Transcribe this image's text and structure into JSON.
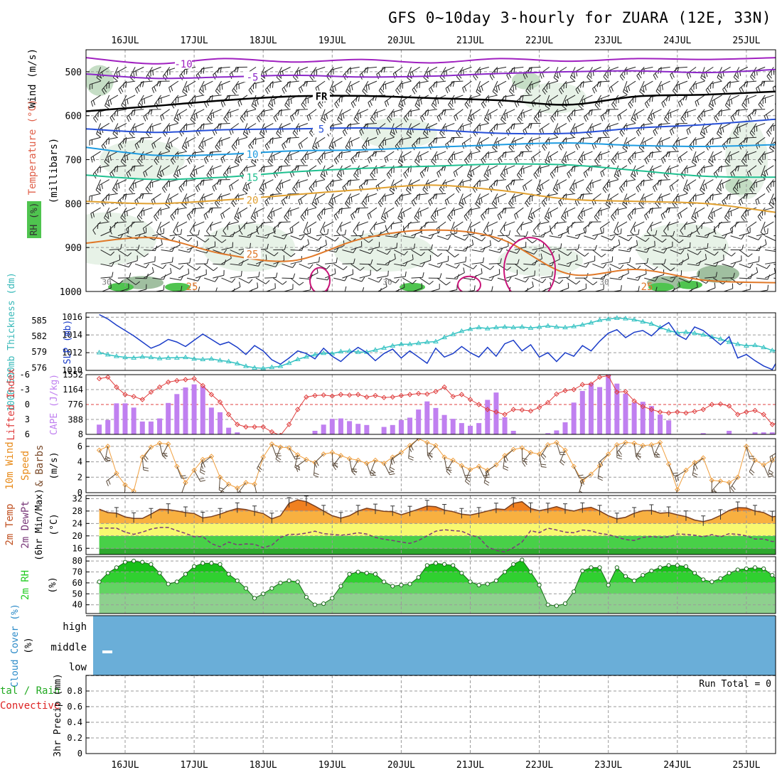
{
  "title": "GFS 0~10day 3-hourly for ZUARA (12E, 33N)",
  "colors": {
    "wind_barb": "#222222",
    "rh_light": "#e3f0e3",
    "rh_mid": "#bcd8bc",
    "rh_dark": "#8fb48f",
    "rh_green": "#4fc44f",
    "temp_m10": "#a020c0",
    "temp_m5": "#8c28c8",
    "temp_fr": "#000000",
    "temp_5": "#2850d8",
    "temp_10": "#1e9be0",
    "temp_15": "#20c090",
    "temp_20": "#e0a030",
    "temp_25": "#e07828",
    "temp_30": "#c81478",
    "slp": "#1a3cc8",
    "thickness": "#36c3c3",
    "lifted": "#e04040",
    "cape": "#c080f0",
    "wind10": "#f0a040",
    "temp2m": "#e07020",
    "dew2m": "#7a3a7a",
    "rh2m": "#22cc22",
    "cloud": "#6aaed8",
    "precip_total": "#22aa22",
    "precip_conv": "#dd2222"
  },
  "chart_data": {
    "date_labels": [
      "16JUL",
      "17JUL",
      "18JUL",
      "19JUL",
      "20JUL",
      "21JUL",
      "22JUL",
      "23JUL",
      "24JUL",
      "25JUL"
    ],
    "steps_per_day": 8,
    "n_steps": 80,
    "panels": [
      {
        "id": "upper_air",
        "type": "contour",
        "ylabel": "(millibars)",
        "side_labels": [
          "Wind (m/s)",
          "Temperature (°C)",
          "RH (%)"
        ],
        "yticks": [
          500,
          600,
          700,
          800,
          900,
          1000
        ],
        "ylim": [
          450,
          1000
        ],
        "contour_labels": [
          "-10",
          "-5",
          "FR",
          "5",
          "10",
          "15",
          "20",
          "25",
          "30"
        ],
        "isotherms": [
          {
            "label": "-10",
            "color_key": "temp_m10",
            "levels": [
              468,
              482,
              470,
              478,
              472,
              480,
              470,
              476,
              470,
              472,
              468
            ]
          },
          {
            "label": "-5",
            "color_key": "temp_m5",
            "levels": [
              505,
              515,
              512,
              508,
              512,
              510,
              504,
              500,
              498,
              502,
              495
            ]
          },
          {
            "label": "FR",
            "color_key": "temp_fr",
            "levels": [
              590,
              578,
              565,
              556,
              555,
              560,
              565,
              575,
              556,
              552,
              545
            ]
          },
          {
            "label": "5",
            "color_key": "temp_5",
            "levels": [
              630,
              638,
              632,
              630,
              628,
              632,
              640,
              640,
              628,
              620,
              608
            ]
          },
          {
            "label": "10",
            "color_key": "temp_10",
            "levels": [
              672,
              690,
              688,
              680,
              678,
              672,
              666,
              662,
              668,
              670,
              666
            ]
          },
          {
            "label": "15",
            "color_key": "temp_15",
            "levels": [
              735,
              745,
              740,
              728,
              720,
              715,
              710,
              712,
              725,
              738,
              740
            ]
          },
          {
            "label": "20",
            "color_key": "temp_20",
            "levels": [
              795,
              800,
              792,
              780,
              768,
              758,
              770,
              790,
              795,
              800,
              820
            ]
          },
          {
            "label": "25",
            "color_key": "temp_25",
            "levels": [
              890,
              878,
              915,
              930,
              880,
              860,
              880,
              960,
              950,
              975,
              980
            ]
          }
        ]
      },
      {
        "id": "slp_thickness",
        "type": "line",
        "left_label": "1000-500mb Thickness (dm)",
        "right_label": "SLP (mb)",
        "slp_yticks": [
          1010,
          1012,
          1014,
          1016
        ],
        "slp_ylim": [
          1010,
          1016.5
        ],
        "thickness_yticks": [
          576,
          579,
          582,
          585
        ],
        "thickness_ylim": [
          575.5,
          586.5
        ],
        "series": [
          {
            "name": "SLP",
            "color_key": "slp",
            "values": [
              1016.3,
              1015.8,
              1015.1,
              1014.5,
              1013.9,
              1013.2,
              1012.5,
              1012.9,
              1013.5,
              1013.2,
              1012.7,
              1013.4,
              1014.1,
              1013.5,
              1012.9,
              1013.2,
              1012.6,
              1011.8,
              1012.8,
              1012.2,
              1011.2,
              1010.7,
              1011.4,
              1012.2,
              1011.9,
              1011.3,
              1012.5,
              1011.6,
              1011.0,
              1011.9,
              1012.6,
              1012.0,
              1011.1,
              1011.9,
              1012.4,
              1011.4,
              1012.2,
              1011.5,
              1010.8,
              1012.5,
              1011.5,
              1011.9,
              1012.7,
              1012.0,
              1011.5,
              1012.6,
              1011.6,
              1013.0,
              1013.4,
              1012.2,
              1012.9,
              1011.5,
              1012.0,
              1011.0,
              1012.0,
              1011.6,
              1012.8,
              1012.2,
              1013.3,
              1014.2,
              1014.6,
              1013.7,
              1014.3,
              1014.5,
              1013.9,
              1014.8,
              1015.4,
              1014.0,
              1013.5,
              1014.9,
              1014.5,
              1013.7,
              1012.9,
              1013.8,
              1011.4,
              1011.8,
              1011.1,
              1010.5,
              1010.1,
              1011.8
            ]
          },
          {
            "name": "Thickness",
            "color_key": "thickness",
            "values": [
              578.9,
              578.5,
              578.2,
              578.0,
              577.9,
              578.1,
              578.0,
              577.8,
              577.9,
              577.9,
              578.0,
              577.7,
              577.6,
              577.7,
              577.4,
              577.2,
              576.8,
              576.3,
              576.0,
              575.9,
              576.1,
              576.3,
              576.9,
              577.6,
              578.1,
              578.5,
              578.8,
              578.7,
              579.1,
              579.2,
              579.0,
              579.0,
              579.4,
              579.8,
              580.2,
              580.5,
              580.5,
              580.7,
              580.9,
              581.0,
              581.8,
              582.4,
              583.0,
              583.4,
              583.7,
              583.5,
              583.7,
              583.8,
              583.7,
              583.8,
              583.6,
              583.8,
              584.0,
              583.8,
              583.7,
              583.9,
              584.2,
              584.6,
              585.1,
              585.3,
              585.5,
              585.4,
              585.2,
              584.8,
              584.4,
              583.7,
              583.1,
              582.7,
              582.8,
              582.6,
              582.3,
              581.9,
              581.5,
              580.9,
              580.5,
              580.2,
              580.3,
              579.9,
              579.3,
              579.4
            ]
          }
        ]
      },
      {
        "id": "lifted_cape",
        "type": "bar+line",
        "left_label": "Lifted Index",
        "right_label": "CAPE (J/kg)",
        "li_yticks": [
          -6,
          -3,
          0,
          3,
          6
        ],
        "li_ylim": [
          -6,
          6
        ],
        "cape_yticks": [
          8,
          388,
          776,
          1164,
          1552
        ],
        "cape_ylim": [
          8,
          1552
        ],
        "lifted_index": [
          -5.2,
          -5.5,
          -3.5,
          -2.0,
          -1.6,
          -1.0,
          -2.5,
          -3.5,
          -4.5,
          -4.8,
          -5.0,
          -5.2,
          -3.8,
          -2.0,
          -0.5,
          2.0,
          4.0,
          4.5,
          4.5,
          4.5,
          5.5,
          6.2,
          4.0,
          1.0,
          -1.5,
          -1.8,
          -1.9,
          -1.7,
          -2.0,
          -1.9,
          -2.0,
          -1.5,
          -1.8,
          -1.4,
          -1.5,
          -1.8,
          -2.0,
          -2.2,
          -2.1,
          -2.6,
          -3.5,
          -1.6,
          -2.0,
          -1.0,
          0.0,
          1.0,
          1.5,
          2.0,
          1.0,
          1.1,
          1.3,
          0.6,
          -0.4,
          -2.1,
          -2.8,
          -3.0,
          -4.0,
          -4.1,
          -5.5,
          -5.8,
          -2.5,
          -2.6,
          -0.7,
          0.4,
          1.0,
          1.5,
          1.7,
          1.5,
          1.7,
          1.4,
          1.0,
          0.0,
          -0.1,
          0.3,
          2.0,
          1.5,
          1.2,
          2.0,
          4.0,
          3.5
        ],
        "cape": [
          260,
          380,
          810,
          810,
          700,
          340,
          340,
          420,
          820,
          1050,
          1220,
          1300,
          1250,
          700,
          580,
          180,
          60,
          0,
          0,
          0,
          0,
          0,
          0,
          0,
          0,
          100,
          260,
          410,
          420,
          350,
          280,
          250,
          0,
          200,
          250,
          380,
          440,
          650,
          860,
          690,
          510,
          410,
          300,
          230,
          300,
          900,
          1090,
          450,
          100,
          0,
          0,
          0,
          40,
          110,
          320,
          830,
          1130,
          1330,
          1230,
          1620,
          1320,
          1060,
          830,
          850,
          740,
          520,
          370,
          0,
          0,
          0,
          40,
          0,
          0,
          100,
          0,
          0,
          60,
          60,
          60,
          0
        ]
      },
      {
        "id": "wind10",
        "type": "line",
        "left_label": "10m Wind Speed & Barbs (m/s)",
        "yticks": [
          0,
          2,
          4,
          6
        ],
        "ylim": [
          0,
          7
        ],
        "values": [
          5.5,
          6.0,
          2.5,
          1.0,
          0.2,
          4.6,
          5.9,
          6.4,
          6.3,
          3.4,
          1.3,
          2.9,
          4.3,
          4.7,
          2.0,
          1.1,
          0.6,
          1.3,
          1.1,
          4.6,
          6.3,
          5.9,
          5.8,
          4.9,
          4.3,
          3.9,
          5.0,
          5.2,
          4.8,
          4.4,
          4.2,
          3.8,
          4.2,
          3.8,
          4.6,
          5.2,
          6.1,
          7.0,
          6.5,
          6.1,
          4.6,
          4.2,
          3.5,
          3.0,
          3.4,
          2.9,
          3.6,
          4.8,
          5.6,
          5.8,
          5.2,
          5.0,
          6.2,
          6.5,
          5.5,
          3.4,
          1.5,
          2.4,
          3.5,
          5.0,
          6.2,
          6.5,
          6.4,
          6.1,
          6.2,
          6.5,
          3.7,
          0.4,
          2.9,
          3.9,
          4.5,
          1.6,
          1.5,
          1.3,
          2.0,
          6.0,
          4.2,
          3.6,
          4.2,
          5.5
        ]
      },
      {
        "id": "temp2m",
        "type": "area+line",
        "left_label": "2m Temp 2m DewPt (6hr Min/Max) (°C)",
        "yticks": [
          16,
          20,
          24,
          28,
          32
        ],
        "ylim": [
          14,
          33
        ],
        "temp": [
          28.6,
          27.5,
          27.3,
          26.1,
          25.6,
          25.6,
          27.0,
          28.6,
          28.5,
          28.0,
          27.5,
          27.2,
          25.8,
          26.2,
          27.0,
          28.0,
          28.8,
          28.5,
          27.8,
          27.2,
          25.5,
          26.5,
          30.5,
          31.6,
          31.0,
          29.6,
          28.0,
          26.5,
          25.7,
          26.5,
          28.0,
          28.9,
          28.4,
          27.9,
          27.8,
          26.8,
          27.7,
          28.6,
          29.6,
          29.4,
          28.3,
          27.8,
          27.0,
          26.7,
          27.3,
          28.0,
          28.7,
          28.5,
          30.5,
          31.0,
          28.8,
          28.1,
          28.7,
          29.4,
          28.5,
          28.0,
          28.8,
          29.2,
          28.0,
          26.5,
          25.5,
          26.0,
          27.3,
          28.1,
          28.2,
          27.3,
          27.5,
          26.8,
          26.2,
          25.1,
          24.6,
          25.3,
          26.6,
          28.2,
          29.1,
          29.0,
          28.0,
          27.5,
          26.1,
          26.6
        ],
        "dewpoint": [
          22.5,
          22.5,
          22.5,
          21.2,
          20.5,
          21.2,
          22.2,
          22.7,
          22.7,
          21.7,
          20.8,
          19.7,
          19.8,
          17.5,
          16.5,
          18.0,
          17.1,
          17.4,
          17.3,
          16.2,
          17.0,
          19.5,
          20.5,
          20.5,
          20.9,
          21.5,
          20.7,
          20.5,
          20.2,
          20.5,
          21.0,
          20.6,
          19.5,
          18.9,
          18.5,
          18.0,
          17.6,
          18.5,
          20.0,
          21.5,
          22.0,
          21.7,
          21.5,
          20.3,
          19.5,
          16.5,
          15.3,
          14.8,
          16.2,
          18.0,
          21.7,
          21.0,
          22.5,
          21.9,
          21.2,
          21.0,
          21.9,
          21.6,
          20.8,
          20.4,
          19.6,
          18.8,
          18.5,
          19.5,
          19.8,
          19.5,
          19.7,
          20.6,
          20.5,
          20.2,
          19.7,
          20.4,
          19.7,
          20.7,
          20.5,
          20.0,
          19.0,
          19.0,
          18.2,
          18.5
        ]
      },
      {
        "id": "rh2m",
        "type": "area",
        "left_label": "2m RH (%)",
        "yticks": [
          40,
          50,
          60,
          70,
          80
        ],
        "ylim": [
          32,
          84
        ],
        "values": [
          61,
          69,
          74,
          79,
          80,
          79,
          77,
          69,
          59,
          61,
          68,
          75,
          78,
          78,
          77,
          68,
          62,
          55,
          46,
          50,
          55,
          60,
          62,
          61,
          47,
          40,
          41,
          46,
          57,
          68,
          70,
          69,
          68,
          61,
          57,
          58,
          59,
          65,
          76,
          78,
          77,
          76,
          69,
          61,
          58,
          59,
          62,
          70,
          77,
          81,
          70,
          58,
          40,
          39,
          41,
          52,
          71,
          74,
          74,
          58,
          74,
          66,
          62,
          67,
          71,
          74,
          76,
          76,
          75,
          69,
          63,
          61,
          64,
          69,
          72,
          73,
          74,
          73,
          67,
          60
        ]
      },
      {
        "id": "cloud",
        "type": "area",
        "left_label": "Cloud Cover (%)",
        "row_labels": [
          "high",
          "middle",
          "low"
        ],
        "values": [
          100,
          100,
          100,
          100,
          100,
          100,
          100,
          100,
          100,
          100
        ]
      },
      {
        "id": "precip",
        "type": "bar",
        "left_label": "Total / Rain Convective",
        "ylabel": "3hr Precip (mm)",
        "yticks": [
          0,
          0.2,
          0.4,
          0.6,
          0.8
        ],
        "yticklabels": [
          "0",
          "0.2",
          "0.4",
          "0.6",
          "0.8"
        ],
        "ylim": [
          0,
          1
        ],
        "run_total": "Run Total = 0",
        "values": []
      }
    ]
  }
}
